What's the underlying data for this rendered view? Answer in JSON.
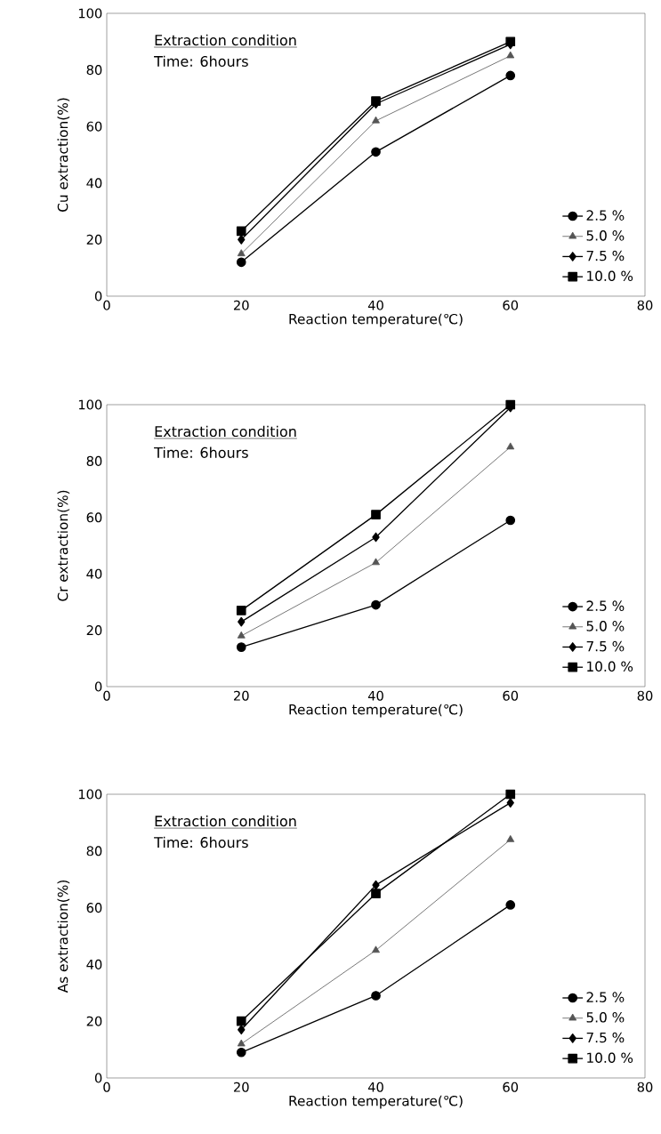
{
  "chart_data": [
    {
      "type": "line",
      "xlabel": "Reaction temperature(℃)",
      "ylabel": "Cu extraction(%)",
      "x": [
        20,
        40,
        60
      ],
      "xlim": [
        0,
        80
      ],
      "ylim": [
        0,
        100
      ],
      "xticks": [
        0,
        20,
        40,
        60,
        80
      ],
      "yticks": [
        0,
        20,
        40,
        60,
        80,
        100
      ],
      "grid": false,
      "legend": "bottom right",
      "annotations": [
        "Extraction condition",
        "Time: 6hours"
      ],
      "series": [
        {
          "name": "2.5 %",
          "color": "#000000",
          "marker": "circle",
          "values": [
            12,
            51,
            78
          ]
        },
        {
          "name": "5.0 %",
          "color": "#555555",
          "marker": "triangle",
          "values": [
            15,
            62,
            85
          ]
        },
        {
          "name": "7.5 %",
          "color": "#000000",
          "marker": "diamond",
          "values": [
            20,
            68,
            89
          ]
        },
        {
          "name": "10.0 %",
          "color": "#000000",
          "marker": "square",
          "values": [
            23,
            69,
            90
          ]
        }
      ]
    },
    {
      "type": "line",
      "xlabel": "Reaction temperature(℃)",
      "ylabel": "Cr extraction(%)",
      "x": [
        20,
        40,
        60
      ],
      "xlim": [
        0,
        80
      ],
      "ylim": [
        0,
        100
      ],
      "xticks": [
        0,
        20,
        40,
        60,
        80
      ],
      "yticks": [
        0,
        20,
        40,
        60,
        80,
        100
      ],
      "grid": false,
      "legend": "bottom right",
      "annotations": [
        "Extraction condition",
        "Time: 6hours"
      ],
      "series": [
        {
          "name": "2.5 %",
          "color": "#000000",
          "marker": "circle",
          "values": [
            14,
            29,
            59
          ]
        },
        {
          "name": "5.0 %",
          "color": "#555555",
          "marker": "triangle",
          "values": [
            18,
            44,
            85
          ]
        },
        {
          "name": "7.5 %",
          "color": "#000000",
          "marker": "diamond",
          "values": [
            23,
            53,
            99
          ]
        },
        {
          "name": "10.0 %",
          "color": "#000000",
          "marker": "square",
          "values": [
            27,
            61,
            100
          ]
        }
      ]
    },
    {
      "type": "line",
      "xlabel": "Reaction temperature(℃)",
      "ylabel": "As extraction(%)",
      "x": [
        20,
        40,
        60
      ],
      "xlim": [
        0,
        80
      ],
      "ylim": [
        0,
        100
      ],
      "xticks": [
        0,
        20,
        40,
        60,
        80
      ],
      "yticks": [
        0,
        20,
        40,
        60,
        80,
        100
      ],
      "grid": false,
      "legend": "bottom right",
      "annotations": [
        "Extraction condition",
        "Time: 6hours"
      ],
      "series": [
        {
          "name": "2.5 %",
          "color": "#000000",
          "marker": "circle",
          "values": [
            9,
            29,
            61
          ]
        },
        {
          "name": "5.0 %",
          "color": "#555555",
          "marker": "triangle",
          "values": [
            12,
            45,
            84
          ]
        },
        {
          "name": "7.5 %",
          "color": "#000000",
          "marker": "diamond",
          "values": [
            17,
            68,
            97
          ]
        },
        {
          "name": "10.0 %",
          "color": "#000000",
          "marker": "square",
          "values": [
            20,
            65,
            100
          ]
        }
      ]
    }
  ]
}
